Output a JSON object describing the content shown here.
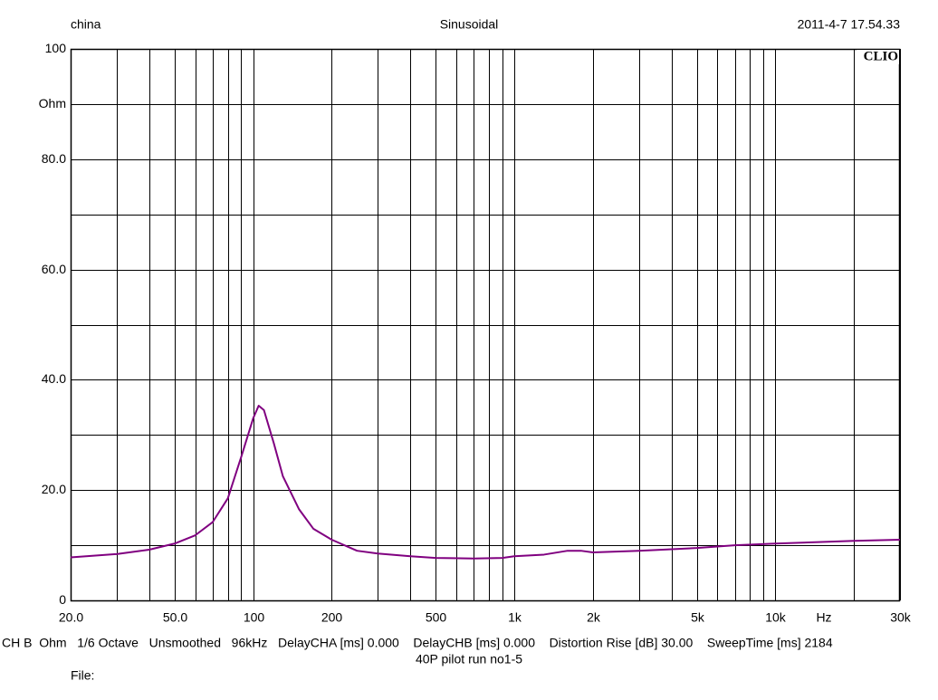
{
  "chart_data": {
    "type": "line",
    "title": "Sinusoidal",
    "header_left": "china",
    "header_right": "2011-4-7 17.54.33",
    "logo": "CLIO",
    "x_label": "Hz",
    "footer": "CH B  Ohm   1/6 Octave   Unsmoothed   96kHz   DelayCHA [ms] 0.000    DelayCHB [ms] 0.000    Distortion Rise [dB] 30.00    SweepTime [ms] 2184",
    "subtitle": "40P pilot run no1-5",
    "file_label": "File:",
    "x_scale": "log",
    "grid": true,
    "xlim": [
      20,
      30000
    ],
    "ylim": [
      0,
      100
    ],
    "xticks": [
      {
        "value": 20,
        "label": "20.0"
      },
      {
        "value": 50,
        "label": "50.0"
      },
      100,
      200,
      500,
      {
        "value": 1000,
        "label": "1k"
      },
      {
        "value": 2000,
        "label": "2k"
      },
      {
        "value": 5000,
        "label": "5k"
      },
      {
        "value": 10000,
        "label": "10k"
      },
      {
        "value": 30000,
        "label": "30k"
      }
    ],
    "xminor": [
      30,
      40,
      60,
      70,
      80,
      90,
      300,
      400,
      600,
      700,
      800,
      900,
      3000,
      4000,
      6000,
      7000,
      8000,
      9000,
      20000
    ],
    "yticks": [
      0,
      {
        "value": 20,
        "label": "20.0"
      },
      {
        "value": 40,
        "label": "40.0"
      },
      {
        "value": 60,
        "label": "60.0"
      },
      {
        "value": 80,
        "label": "80.0"
      },
      {
        "value": 90,
        "label": "Ohm"
      },
      100
    ],
    "yminor": [
      10,
      30,
      50,
      70
    ],
    "x": [
      20,
      30,
      40,
      50,
      60,
      70,
      80,
      90,
      100,
      105,
      110,
      120,
      130,
      150,
      170,
      200,
      250,
      300,
      400,
      500,
      700,
      900,
      1000,
      1300,
      1600,
      1800,
      2000,
      3000,
      5000,
      7000,
      10000,
      15000,
      20000,
      30000
    ],
    "series": [
      {
        "color": "#800080",
        "values": [
          7.8,
          8.4,
          9.2,
          10.3,
          11.8,
          14.2,
          18.5,
          26,
          33,
          35.3,
          34.5,
          28.5,
          22.5,
          16.5,
          13,
          11,
          9,
          8.5,
          8,
          7.7,
          7.6,
          7.7,
          8,
          8.3,
          9,
          9,
          8.7,
          9,
          9.5,
          10,
          10.3,
          10.6,
          10.8,
          11
        ]
      }
    ]
  }
}
